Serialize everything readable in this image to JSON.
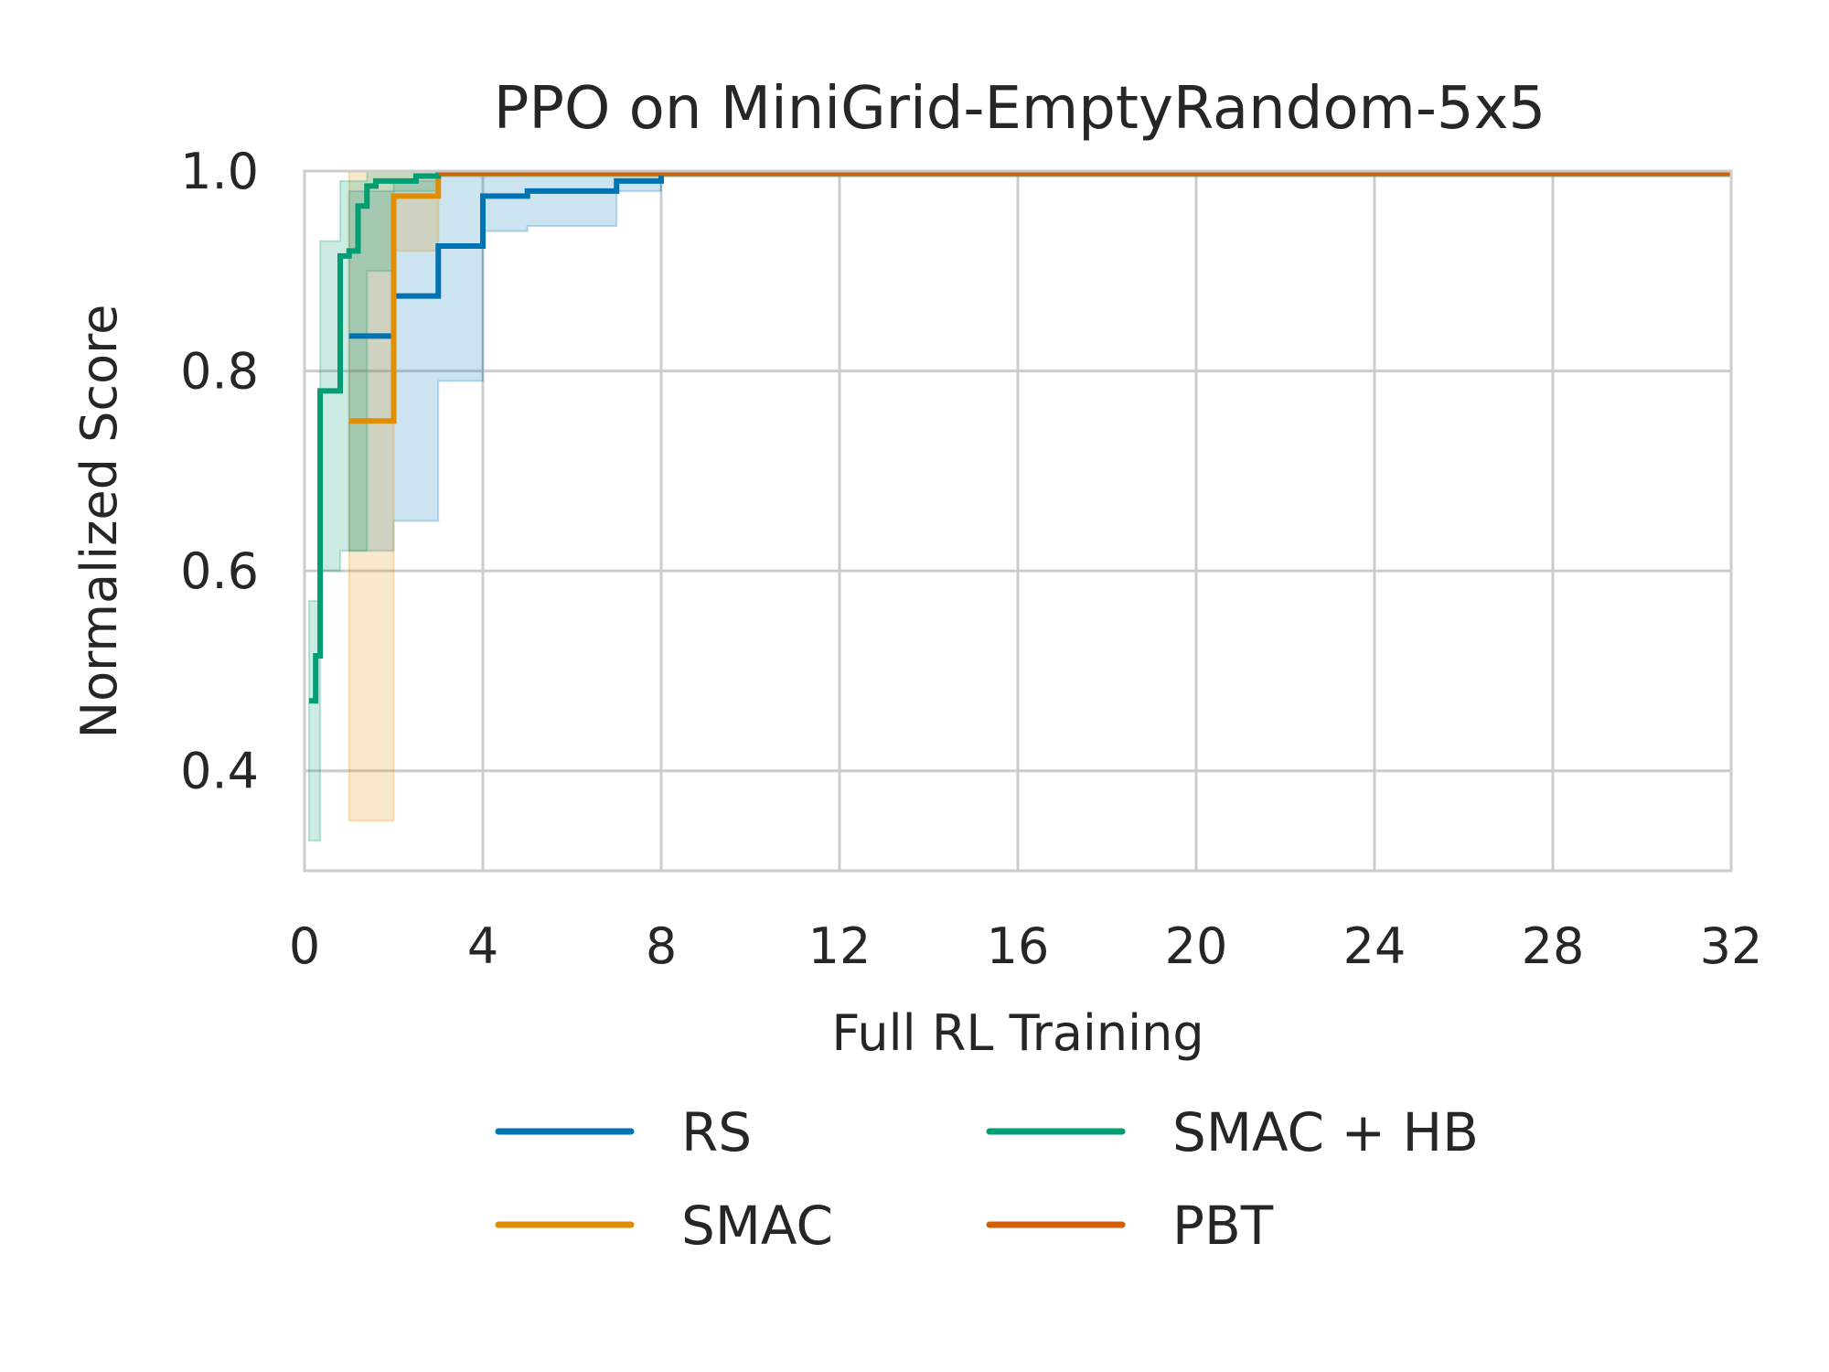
{
  "chart_data": {
    "type": "line",
    "title": "PPO on MiniGrid-EmptyRandom-5x5",
    "xlabel": "Full RL Training",
    "ylabel": "Normalized Score",
    "xlim": [
      0,
      32
    ],
    "ylim": [
      0.3,
      1.0
    ],
    "x_ticks": [
      "0",
      "4",
      "8",
      "12",
      "16",
      "20",
      "24",
      "28",
      "32"
    ],
    "x_tick_values": [
      0,
      4,
      8,
      12,
      16,
      20,
      24,
      28,
      32
    ],
    "y_ticks": [
      "0.4",
      "0.6",
      "0.8",
      "1.0"
    ],
    "y_tick_values": [
      0.4,
      0.6,
      0.8,
      1.0
    ],
    "grid": true,
    "legend_position": "below",
    "series": [
      {
        "name": "RS",
        "color": "#0173b2",
        "x": [
          1.0,
          2.0,
          2.0,
          3.0,
          3.0,
          4.0,
          4.0,
          5.0,
          5.0,
          7.0,
          7.0,
          8.0,
          8.0,
          32.0
        ],
        "y": [
          0.835,
          0.835,
          0.875,
          0.875,
          0.925,
          0.925,
          0.975,
          0.975,
          0.98,
          0.98,
          0.99,
          0.99,
          0.998,
          0.998
        ],
        "band_x": [
          1.0,
          2.0,
          2.0,
          3.0,
          3.0,
          4.0,
          4.0,
          5.0,
          5.0,
          7.0,
          7.0,
          8.0,
          8.0,
          32.0
        ],
        "band_lower": [
          0.62,
          0.62,
          0.65,
          0.65,
          0.79,
          0.79,
          0.94,
          0.94,
          0.945,
          0.945,
          0.98,
          0.98,
          0.995,
          0.995
        ],
        "band_upper": [
          0.98,
          0.98,
          0.99,
          0.99,
          1.0,
          1.0,
          1.0,
          1.0,
          1.0,
          1.0,
          1.0,
          1.0,
          1.0,
          1.0
        ]
      },
      {
        "name": "SMAC",
        "color": "#de8f05",
        "x": [
          1.0,
          2.0,
          2.0,
          3.0,
          3.0,
          32.0
        ],
        "y": [
          0.75,
          0.75,
          0.975,
          0.975,
          0.998,
          0.998
        ],
        "band_x": [
          1.0,
          2.0,
          2.0,
          3.0,
          3.0,
          32.0
        ],
        "band_lower": [
          0.35,
          0.35,
          0.92,
          0.92,
          0.995,
          0.995
        ],
        "band_upper": [
          1.0,
          1.0,
          1.0,
          1.0,
          1.0,
          1.0
        ]
      },
      {
        "name": "SMAC + HB",
        "color": "#029e73",
        "x": [
          0.1,
          0.25,
          0.25,
          0.35,
          0.35,
          0.8,
          0.8,
          1.0,
          1.0,
          1.2,
          1.2,
          1.4,
          1.4,
          1.6,
          1.6,
          2.5,
          2.5,
          3.0,
          3.0,
          32.0
        ],
        "y": [
          0.47,
          0.47,
          0.515,
          0.515,
          0.78,
          0.78,
          0.915,
          0.915,
          0.92,
          0.92,
          0.965,
          0.965,
          0.985,
          0.985,
          0.99,
          0.99,
          0.995,
          0.995,
          0.998,
          0.998
        ],
        "band_x": [
          0.1,
          0.35,
          0.35,
          0.8,
          0.8,
          1.4,
          1.4,
          2.0,
          2.0,
          3.0,
          3.0,
          32.0
        ],
        "band_lower": [
          0.33,
          0.33,
          0.6,
          0.6,
          0.62,
          0.62,
          0.9,
          0.9,
          0.98,
          0.98,
          0.995,
          0.995
        ],
        "band_upper": [
          0.57,
          0.57,
          0.93,
          0.93,
          0.99,
          0.99,
          1.0,
          1.0,
          1.0,
          1.0,
          1.0,
          1.0
        ]
      },
      {
        "name": "PBT",
        "color": "#d55e00",
        "x": [
          3.0,
          32.0
        ],
        "y": [
          0.998,
          0.998
        ],
        "band_x": [
          3.0,
          32.0
        ],
        "band_lower": [
          0.995,
          0.995
        ],
        "band_upper": [
          1.0,
          1.0
        ]
      }
    ]
  }
}
